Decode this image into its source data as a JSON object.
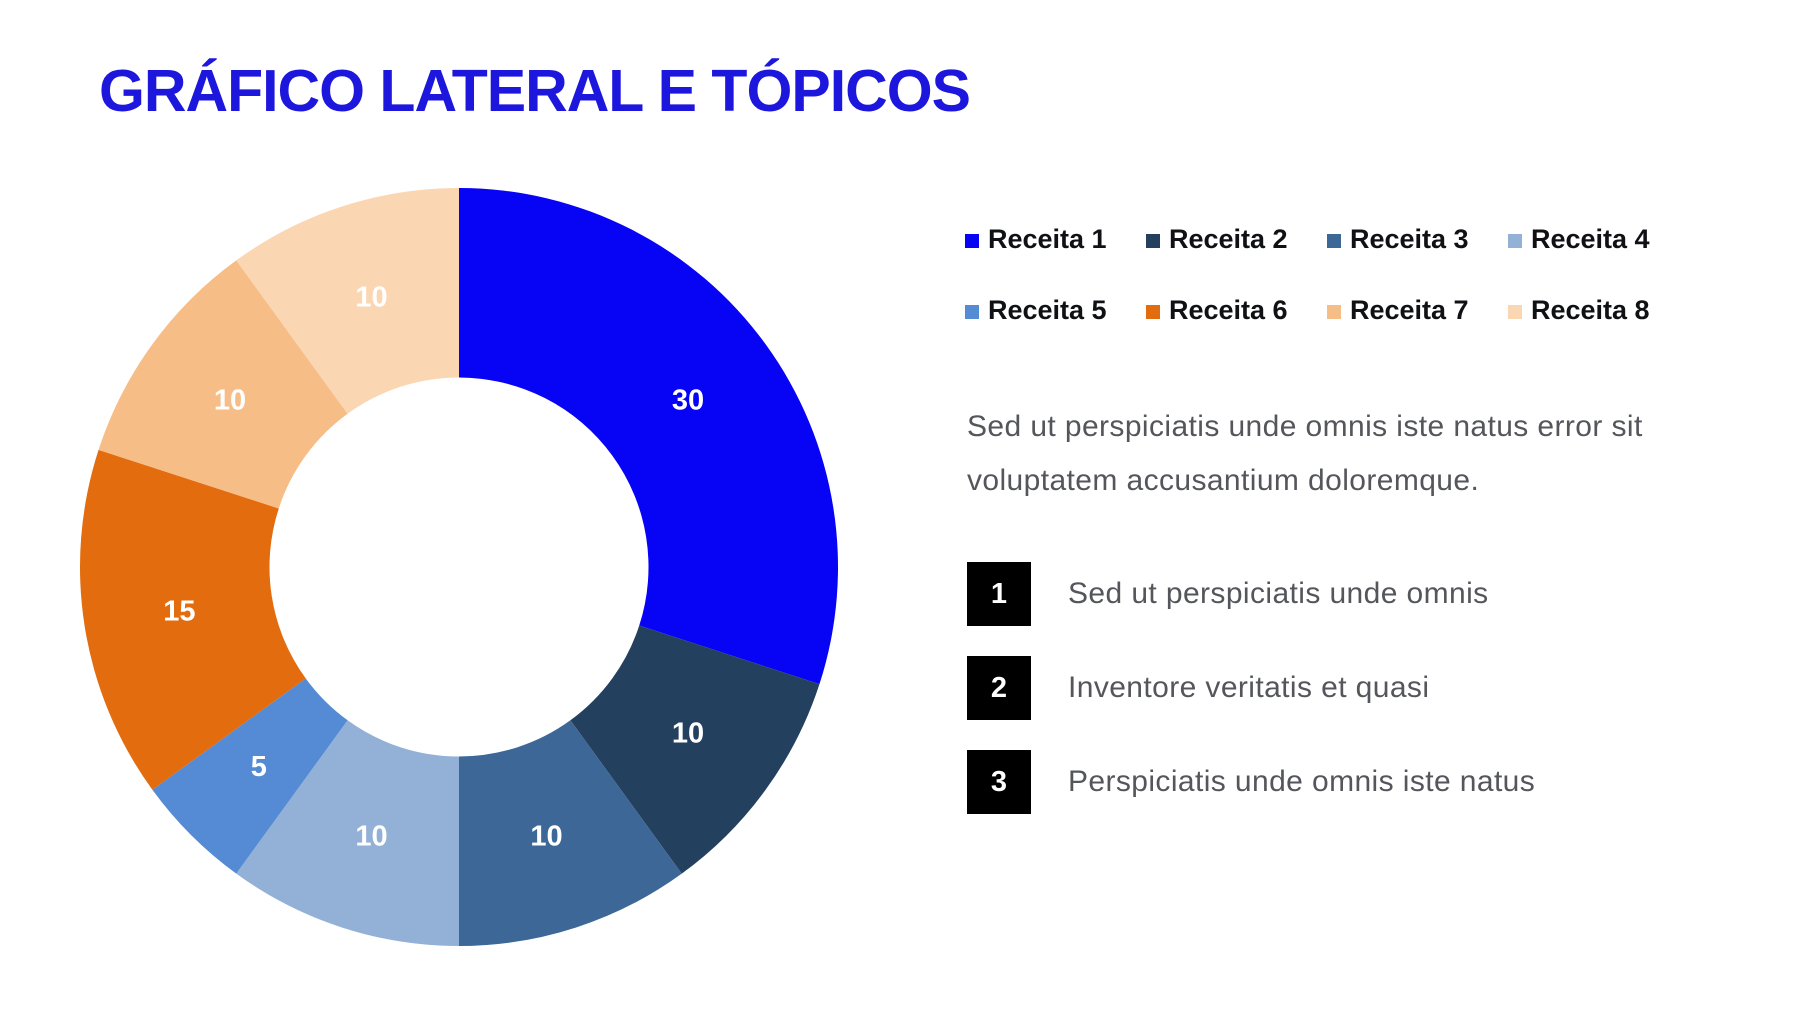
{
  "slide": {
    "title": "GRÁFICO LATERAL E TÓPICOS",
    "title_color": "#1D16DD"
  },
  "chart_data": {
    "type": "pie",
    "subtype": "donut",
    "title": "",
    "categories": [
      "Receita 1",
      "Receita 2",
      "Receita 3",
      "Receita 4",
      "Receita 5",
      "Receita 6",
      "Receita 7",
      "Receita 8"
    ],
    "values": [
      30,
      10,
      10,
      10,
      5,
      15,
      10,
      10
    ],
    "colors": [
      "#0703F5",
      "#24405F",
      "#3C6796",
      "#93B1D6",
      "#548BD4",
      "#E26C0E",
      "#F7BD87",
      "#FBD6B3"
    ],
    "data_labels": [
      "30",
      "10",
      "10",
      "10",
      "5",
      "15",
      "10",
      "10"
    ],
    "data_label_color": "#FFFFFF",
    "start_angle_deg": 0,
    "direction": "clockwise",
    "inner_radius_ratio": 0.5,
    "label_radius_ratio": 0.747,
    "legend_position": "right-top",
    "grid": false
  },
  "legend": {
    "items": [
      {
        "label": "Receita 1",
        "color": "#0703F5"
      },
      {
        "label": "Receita 2",
        "color": "#24405F"
      },
      {
        "label": "Receita 3",
        "color": "#3C6796"
      },
      {
        "label": "Receita 4",
        "color": "#93B1D6"
      },
      {
        "label": "Receita 5",
        "color": "#548BD4"
      },
      {
        "label": "Receita 6",
        "color": "#E26C0E"
      },
      {
        "label": "Receita 7",
        "color": "#F7BD87"
      },
      {
        "label": "Receita 8",
        "color": "#FBD6B3"
      }
    ]
  },
  "paragraph": "Sed ut perspiciatis unde omnis iste natus error sit voluptatem accusantium doloremque.",
  "topics": [
    {
      "number": "1",
      "text": "Sed ut perspiciatis unde omnis"
    },
    {
      "number": "2",
      "text": "Inventore veritatis et quasi"
    },
    {
      "number": "3",
      "text": "Perspiciatis unde omnis iste natus"
    }
  ]
}
